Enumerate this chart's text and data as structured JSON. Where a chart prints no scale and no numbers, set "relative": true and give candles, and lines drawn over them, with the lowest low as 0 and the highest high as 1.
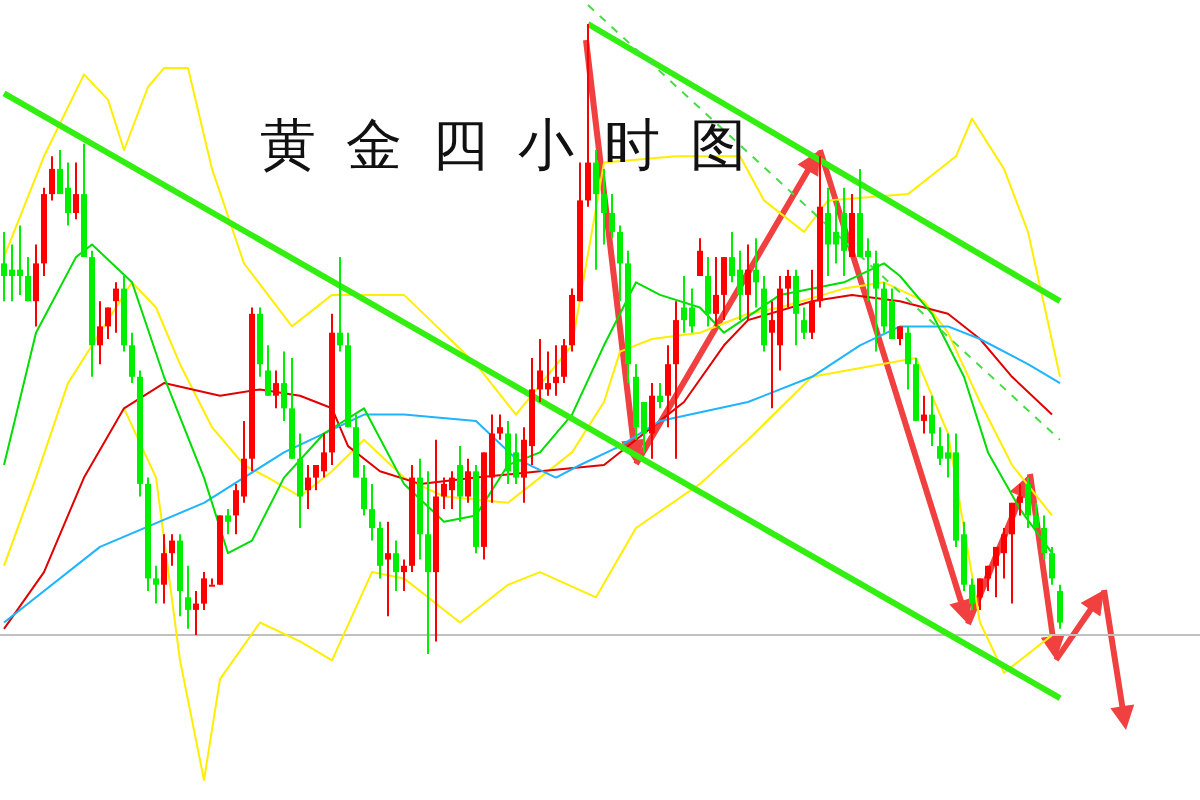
{
  "chart_data": {
    "type": "candlestick",
    "title": "黄金四小时图",
    "relative": true,
    "tick_labels": false,
    "grid": false,
    "legend": false,
    "categories": [
      null,
      null,
      null,
      null,
      null,
      null,
      null,
      null,
      null,
      null,
      null,
      null,
      null,
      null,
      null,
      null,
      null,
      null,
      null,
      null,
      null,
      null,
      null,
      null,
      null,
      null,
      null,
      null,
      null,
      null,
      null,
      null,
      null,
      null,
      null,
      null,
      null,
      null,
      null,
      null,
      null,
      null,
      null,
      null,
      null,
      null,
      null,
      null,
      null,
      null,
      null,
      null,
      null,
      null,
      null,
      null,
      null,
      null,
      null,
      null,
      null,
      null,
      null,
      null,
      null,
      null,
      null,
      null,
      null,
      null,
      null,
      null,
      null,
      null,
      null,
      null,
      null,
      null,
      null,
      null,
      null,
      null,
      null,
      null,
      null,
      null,
      null,
      null,
      null,
      null,
      null,
      null,
      null,
      null,
      null,
      null,
      null,
      null,
      null,
      null,
      null,
      null,
      null,
      null,
      null,
      null,
      null,
      null,
      null,
      null,
      null,
      null,
      null,
      null,
      null,
      null,
      null,
      null,
      null,
      null,
      null,
      null,
      null,
      null,
      null,
      null,
      null,
      null,
      null,
      null,
      null,
      null,
      null
    ],
    "ohlc": [
      [
        0.62,
        0.67,
        0.56,
        0.6
      ],
      [
        0.61,
        0.65,
        0.56,
        0.6
      ],
      [
        0.61,
        0.68,
        0.57,
        0.6
      ],
      [
        0.6,
        0.63,
        0.56,
        0.56
      ],
      [
        0.56,
        0.65,
        0.52,
        0.62
      ],
      [
        0.62,
        0.74,
        0.6,
        0.73
      ],
      [
        0.73,
        0.79,
        0.72,
        0.77
      ],
      [
        0.77,
        0.8,
        0.73,
        0.73
      ],
      [
        0.74,
        0.78,
        0.68,
        0.7
      ],
      [
        0.7,
        0.78,
        0.69,
        0.73
      ],
      [
        0.73,
        0.81,
        0.63,
        0.63
      ],
      [
        0.63,
        0.64,
        0.44,
        0.49
      ],
      [
        0.49,
        0.56,
        0.46,
        0.52
      ],
      [
        0.52,
        0.55,
        0.5,
        0.55
      ],
      [
        0.56,
        0.59,
        0.51,
        0.58
      ],
      [
        0.58,
        0.6,
        0.48,
        0.49
      ],
      [
        0.49,
        0.51,
        0.43,
        0.44
      ],
      [
        0.44,
        0.45,
        0.25,
        0.27
      ],
      [
        0.27,
        0.28,
        0.1,
        0.12
      ],
      [
        0.12,
        0.14,
        0.08,
        0.11
      ],
      [
        0.11,
        0.19,
        0.08,
        0.16
      ],
      [
        0.16,
        0.19,
        0.14,
        0.18
      ],
      [
        0.18,
        0.19,
        0.06,
        0.1
      ],
      [
        0.09,
        0.14,
        0.04,
        0.07
      ],
      [
        0.07,
        0.1,
        0.03,
        0.08
      ],
      [
        0.08,
        0.13,
        0.07,
        0.12
      ],
      [
        0.11,
        0.12,
        0.11,
        0.11
      ],
      [
        0.11,
        0.22,
        0.11,
        0.22
      ],
      [
        0.22,
        0.23,
        0.19,
        0.21
      ],
      [
        0.22,
        0.27,
        0.19,
        0.26
      ],
      [
        0.25,
        0.37,
        0.24,
        0.31
      ],
      [
        0.31,
        0.55,
        0.29,
        0.54
      ],
      [
        0.54,
        0.55,
        0.44,
        0.46
      ],
      [
        0.45,
        0.49,
        0.41,
        0.41
      ],
      [
        0.41,
        0.45,
        0.39,
        0.43
      ],
      [
        0.43,
        0.48,
        0.37,
        0.39
      ],
      [
        0.39,
        0.47,
        0.31,
        0.31
      ],
      [
        0.31,
        0.35,
        0.2,
        0.25
      ],
      [
        0.26,
        0.3,
        0.23,
        0.28
      ],
      [
        0.28,
        0.3,
        0.26,
        0.3
      ],
      [
        0.29,
        0.35,
        0.28,
        0.32
      ],
      [
        0.32,
        0.54,
        0.3,
        0.51
      ],
      [
        0.51,
        0.63,
        0.48,
        0.49
      ],
      [
        0.49,
        0.51,
        0.36,
        0.36
      ],
      [
        0.36,
        0.38,
        0.28,
        0.28
      ],
      [
        0.28,
        0.3,
        0.22,
        0.23
      ],
      [
        0.23,
        0.27,
        0.18,
        0.2
      ],
      [
        0.2,
        0.21,
        0.12,
        0.14
      ],
      [
        0.15,
        0.21,
        0.06,
        0.16
      ],
      [
        0.16,
        0.18,
        0.1,
        0.13
      ],
      [
        0.13,
        0.15,
        0.1,
        0.14
      ],
      [
        0.14,
        0.3,
        0.13,
        0.28
      ],
      [
        0.28,
        0.31,
        0.15,
        0.19
      ],
      [
        0.19,
        0.29,
        0,
        0.13
      ],
      [
        0.13,
        0.34,
        0.02,
        0.25
      ],
      [
        0.25,
        0.28,
        0.23,
        0.27
      ],
      [
        0.26,
        0.29,
        0.23,
        0.28
      ],
      [
        0.3,
        0.33,
        0.21,
        0.25
      ],
      [
        0.25,
        0.31,
        0.24,
        0.29
      ],
      [
        0.29,
        0.3,
        0.16,
        0.17
      ],
      [
        0.17,
        0.32,
        0.15,
        0.32
      ],
      [
        0.28,
        0.38,
        0.24,
        0.35
      ],
      [
        0.35,
        0.38,
        0.34,
        0.36
      ],
      [
        0.35,
        0.37,
        0.27,
        0.29
      ],
      [
        0.32,
        0.35,
        0.27,
        0.28
      ],
      [
        0.28,
        0.36,
        0.24,
        0.34
      ],
      [
        0.33,
        0.47,
        0.3,
        0.42
      ],
      [
        0.42,
        0.5,
        0.4,
        0.45
      ],
      [
        0.42,
        0.48,
        0.41,
        0.43
      ],
      [
        0.43,
        0.49,
        0.41,
        0.44
      ],
      [
        0.44,
        0.5,
        0.43,
        0.49
      ],
      [
        0.49,
        0.58,
        0.48,
        0.57
      ],
      [
        0.56,
        0.78,
        0.56,
        0.72
      ],
      [
        0.72,
        1,
        0.71,
        0.78
      ],
      [
        0.78,
        0.8,
        0.61,
        0.73
      ],
      [
        0.73,
        0.77,
        0.65,
        0.7
      ],
      [
        0.7,
        0.73,
        0.66,
        0.67
      ],
      [
        0.67,
        0.68,
        0.56,
        0.62
      ],
      [
        0.62,
        0.64,
        0.43,
        0.46
      ],
      [
        0.44,
        0.46,
        0.34,
        0.36
      ],
      [
        0.4,
        0.4,
        0.32,
        0.35
      ],
      [
        0.35,
        0.43,
        0.31,
        0.41
      ],
      [
        0.41,
        0.43,
        0.39,
        0.4
      ],
      [
        0.41,
        0.49,
        0.36,
        0.46
      ],
      [
        0.46,
        0.56,
        0.31,
        0.53
      ],
      [
        0.55,
        0.6,
        0.51,
        0.53
      ],
      [
        0.55,
        0.58,
        0.51,
        0.52
      ],
      [
        0.6,
        0.66,
        0.6,
        0.64
      ],
      [
        0.6,
        0.63,
        0.52,
        0.54
      ],
      [
        0.54,
        0.63,
        0.52,
        0.57
      ],
      [
        0.57,
        0.63,
        0.53,
        0.63
      ],
      [
        0.63,
        0.67,
        0.59,
        0.6
      ],
      [
        0.61,
        0.64,
        0.53,
        0.57
      ],
      [
        0.57,
        0.65,
        0.53,
        0.61
      ],
      [
        0.61,
        0.66,
        0.55,
        0.59
      ],
      [
        0.58,
        0.6,
        0.48,
        0.49
      ],
      [
        0.51,
        0.56,
        0.39,
        0.53
      ],
      [
        0.49,
        0.6,
        0.45,
        0.58
      ],
      [
        0.58,
        0.61,
        0.55,
        0.6
      ],
      [
        0.6,
        0.61,
        0.49,
        0.54
      ],
      [
        0.53,
        0.55,
        0.5,
        0.51
      ],
      [
        0.51,
        0.61,
        0.5,
        0.56
      ],
      [
        0.56,
        0.79,
        0.55,
        0.71
      ],
      [
        0.7,
        0.74,
        0.6,
        0.65
      ],
      [
        0.67,
        0.72,
        0.62,
        0.65
      ],
      [
        0.7,
        0.74,
        0.6,
        0.64
      ],
      [
        0.63,
        0.73,
        0.63,
        0.7
      ],
      [
        0.7,
        0.77,
        0.63,
        0.63
      ],
      [
        0.64,
        0.66,
        0.56,
        0.63
      ],
      [
        0.62,
        0.64,
        0.48,
        0.58
      ],
      [
        0.58,
        0.59,
        0.51,
        0.52
      ],
      [
        0.56,
        0.58,
        0.5,
        0.5
      ],
      [
        0.5,
        0.52,
        0.49,
        0.52
      ],
      [
        0.51,
        0.52,
        0.42,
        0.46
      ],
      [
        0.46,
        0.47,
        0.37,
        0.37
      ],
      [
        0.37,
        0.41,
        0.35,
        0.38
      ],
      [
        0.38,
        0.41,
        0.33,
        0.35
      ],
      [
        0.33,
        0.36,
        0.3,
        0.31
      ],
      [
        0.32,
        0.35,
        0.28,
        0.31
      ],
      [
        0.32,
        0.35,
        0.17,
        0.18
      ],
      [
        0.19,
        0.21,
        0.1,
        0.11
      ],
      [
        0.11,
        0.12,
        0.07,
        0.08
      ],
      [
        0.09,
        0.12,
        0.07,
        0.12
      ],
      [
        0.12,
        0.14,
        0.1,
        0.14
      ],
      [
        0.14,
        0.17,
        0.09,
        0.17
      ],
      [
        0.16,
        0.2,
        0.12,
        0.19
      ],
      [
        0.19,
        0.24,
        0.08,
        0.24
      ],
      [
        0.24,
        0.27,
        0.22,
        0.25
      ],
      [
        0.27,
        0.28,
        0.2,
        0.22
      ],
      [
        0.22,
        0.24,
        0.2,
        0.2
      ],
      [
        0.2,
        0.22,
        0.15,
        0.16
      ],
      [
        0.16,
        0.17,
        0.11,
        0.12
      ],
      [
        0.1,
        0.11,
        0.04,
        0.05
      ]
    ],
    "ref_lines": [
      {
        "axis": "y",
        "value": 0.03,
        "color": "#c0c0c0"
      }
    ],
    "series": [
      {
        "type": "line",
        "color": "#ffee00",
        "values": [
          0.63,
          null,
          null,
          null,
          null,
          0.79,
          null,
          null,
          null,
          null,
          0.92,
          null,
          null,
          0.88,
          null,
          0.8,
          null,
          null,
          0.9,
          null,
          0.93,
          null,
          null,
          0.93,
          null,
          null,
          0.77,
          null,
          null,
          null,
          0.62,
          null,
          null,
          null,
          null,
          null,
          0.52,
          null,
          null,
          null,
          null,
          0.57,
          null,
          null,
          null,
          null,
          null,
          null,
          null,
          null,
          0.57,
          null,
          null,
          null,
          null,
          null,
          null,
          null,
          null,
          0.46,
          null,
          null,
          null,
          null,
          0.38,
          null,
          null,
          null,
          null,
          null,
          null,
          0.49,
          null,
          null,
          null,
          0.78,
          null,
          null,
          null,
          null,
          null,
          null,
          null,
          null,
          0.79,
          null,
          null,
          null,
          null,
          null,
          null,
          null,
          0.79,
          null,
          null,
          0.72,
          null,
          null,
          null,
          null,
          0.67,
          null,
          null,
          0.72,
          null,
          null,
          null,
          null,
          null,
          null,
          null,
          null,
          null,
          0.73,
          null,
          null,
          null,
          null,
          null,
          0.79,
          null,
          0.85,
          null,
          null,
          null,
          0.77,
          null,
          null,
          0.67,
          null,
          null,
          null,
          0.44
        ]
      },
      {
        "type": "line",
        "color": "#ffee00",
        "values": [
          0.14,
          null,
          null,
          null,
          0.28,
          null,
          null,
          null,
          0.43,
          null,
          null,
          null,
          0.51,
          null,
          null,
          null,
          0.59,
          null,
          null,
          0.55,
          null,
          null,
          0.46,
          null,
          null,
          null,
          0.36,
          null,
          null,
          null,
          0.3,
          null,
          null,
          0.28,
          null,
          null,
          null,
          0.25,
          null,
          null,
          null,
          0.29,
          null,
          null,
          null,
          0.34,
          null,
          null,
          null,
          null,
          0.28,
          null,
          null,
          null,
          null,
          0.25,
          null,
          null,
          null,
          null,
          null,
          null,
          null,
          0.24,
          null,
          null,
          null,
          0.28,
          null,
          null,
          null,
          0.32,
          null,
          null,
          null,
          0.4,
          null,
          0.48,
          null,
          null,
          null,
          0.5,
          null,
          null,
          null,
          null,
          null,
          0.51,
          null,
          null,
          null,
          null,
          null,
          0.54,
          null,
          null,
          null,
          0.55,
          null,
          null,
          null,
          null,
          null,
          null,
          null,
          0.58,
          null,
          null,
          null,
          null,
          0.59,
          null,
          null,
          null,
          null,
          0.56,
          null,
          null,
          0.51,
          null,
          null,
          null,
          0.4,
          null,
          null,
          null,
          0.3,
          null,
          null,
          null,
          null,
          0.22,
          null
        ]
      },
      {
        "type": "line",
        "color": "#ffee00",
        "values": [
          null,
          null,
          null,
          null,
          null,
          null,
          null,
          null,
          null,
          null,
          null,
          null,
          null,
          null,
          null,
          0.39,
          null,
          null,
          null,
          0.28,
          null,
          null,
          -0.01,
          null,
          null,
          -0.2,
          null,
          -0.04,
          null,
          null,
          null,
          null,
          0.05,
          null,
          null,
          null,
          null,
          0.02,
          null,
          null,
          null,
          -0.01,
          null,
          null,
          null,
          null,
          0.13,
          null,
          null,
          null,
          0.12,
          null,
          null,
          null,
          null,
          null,
          null,
          0.05,
          null,
          null,
          null,
          null,
          null,
          0.11,
          null,
          null,
          null,
          0.13,
          null,
          null,
          null,
          null,
          null,
          null,
          0.09,
          null,
          null,
          null,
          null,
          0.2,
          null,
          null,
          null,
          null,
          null,
          null,
          null,
          0.27,
          null,
          null,
          null,
          null,
          null,
          0.34,
          null,
          null,
          null,
          null,
          null,
          null,
          null,
          0.44,
          null,
          null,
          null,
          null,
          null,
          null,
          null,
          null,
          null,
          null,
          null,
          null,
          0.47,
          null,
          null,
          null,
          0.35,
          null,
          null,
          null,
          0.05,
          null,
          null,
          -0.03,
          null,
          null,
          null,
          null,
          null,
          0.03,
          null
        ]
      },
      {
        "type": "line",
        "color": "#e00000",
        "values": [
          0.04,
          null,
          null,
          null,
          null,
          0.13,
          null,
          null,
          null,
          null,
          0.28,
          null,
          null,
          null,
          null,
          0.39,
          null,
          null,
          null,
          null,
          0.43,
          null,
          null,
          null,
          null,
          null,
          null,
          0.41,
          null,
          null,
          null,
          null,
          0.42,
          null,
          null,
          null,
          null,
          0.41,
          null,
          null,
          null,
          0.39,
          null,
          0.33,
          null,
          null,
          null,
          0.29,
          null,
          null,
          null,
          null,
          0.27,
          null,
          null,
          null,
          null,
          null,
          null,
          0.28,
          null,
          null,
          null,
          null,
          null,
          null,
          null,
          0.29,
          null,
          null,
          null,
          null,
          null,
          null,
          null,
          0.3,
          null,
          null,
          null,
          0.34,
          null,
          null,
          0.37,
          null,
          null,
          0.4,
          null,
          null,
          null,
          null,
          0.49,
          null,
          null,
          0.53,
          null,
          null,
          null,
          null,
          null,
          null,
          null,
          0.56,
          null,
          null,
          null,
          null,
          0.57,
          null,
          null,
          null,
          null,
          null,
          0.56,
          null,
          null,
          null,
          null,
          null,
          0.54,
          null,
          null,
          null,
          0.5,
          null,
          null,
          null,
          0.44,
          null,
          null,
          null,
          null,
          0.38,
          null
        ]
      },
      {
        "type": "line",
        "color": "#1eb4ff",
        "values": [
          0.05,
          null,
          null,
          null,
          null,
          null,
          null,
          null,
          null,
          null,
          null,
          null,
          0.17,
          null,
          null,
          null,
          null,
          null,
          null,
          null,
          null,
          null,
          null,
          null,
          null,
          0.24,
          null,
          null,
          null,
          null,
          null,
          null,
          null,
          null,
          null,
          0.32,
          null,
          null,
          null,
          null,
          null,
          null,
          null,
          null,
          null,
          0.38,
          null,
          null,
          null,
          null,
          0.38,
          null,
          null,
          null,
          null,
          null,
          null,
          null,
          null,
          0.37,
          null,
          null,
          null,
          null,
          0.31,
          null,
          null,
          null,
          null,
          0.28,
          null,
          null,
          0.3,
          null,
          null,
          null,
          null,
          0.33,
          null,
          null,
          null,
          null,
          0.37,
          null,
          null,
          null,
          null,
          null,
          null,
          null,
          null,
          null,
          null,
          0.4,
          null,
          null,
          null,
          null,
          null,
          null,
          null,
          0.44,
          null,
          null,
          null,
          null,
          null,
          0.49,
          null,
          null,
          null,
          null,
          0.52,
          null,
          null,
          null,
          null,
          null,
          0.52,
          null,
          null,
          null,
          0.5,
          null,
          null,
          null,
          null,
          null,
          0.46,
          null,
          null,
          null,
          0.43
        ]
      },
      {
        "type": "line",
        "color": "#00dd00",
        "values": [
          0.3,
          null,
          null,
          null,
          0.51,
          null,
          null,
          null,
          null,
          0.63,
          null,
          0.65,
          null,
          null,
          null,
          null,
          0.59,
          null,
          null,
          null,
          0.44,
          null,
          null,
          null,
          null,
          0.28,
          null,
          null,
          0.16,
          null,
          null,
          0.18,
          null,
          null,
          null,
          0.28,
          null,
          null,
          null,
          null,
          0.35,
          null,
          null,
          null,
          null,
          0.39,
          null,
          null,
          null,
          null,
          0.27,
          null,
          null,
          null,
          null,
          0.21,
          null,
          null,
          null,
          0.22,
          null,
          null,
          null,
          0.3,
          null,
          null,
          null,
          0.32,
          null,
          null,
          null,
          0.38,
          null,
          null,
          null,
          0.49,
          null,
          null,
          null,
          0.59,
          null,
          null,
          0.57,
          null,
          null,
          null,
          null,
          0.55,
          null,
          null,
          0.51,
          null,
          null,
          null,
          null,
          null,
          null,
          0.57,
          null,
          null,
          null,
          null,
          null,
          null,
          null,
          0.59,
          null,
          null,
          null,
          null,
          0.62,
          null,
          0.6,
          null,
          null,
          null,
          0.54,
          null,
          null,
          null,
          0.44,
          null,
          null,
          0.32,
          null,
          null,
          null,
          0.23,
          null,
          null,
          null,
          0.16,
          null
        ]
      },
      {
        "type": "line",
        "color": "#33ee11",
        "values": [
          0.89,
          null,
          null,
          null,
          null,
          null,
          null,
          null,
          null,
          null,
          null,
          null,
          null,
          null,
          null,
          null,
          null,
          null,
          null,
          null,
          null,
          null,
          null,
          null,
          null,
          null,
          null,
          null,
          null,
          null,
          null,
          null,
          null,
          null,
          null,
          null,
          null,
          null,
          null,
          null,
          null,
          null,
          null,
          null,
          null,
          null,
          null,
          null,
          null,
          null,
          null,
          null,
          null,
          null,
          null,
          null,
          null,
          null,
          null,
          null,
          null,
          null,
          null,
          null,
          null,
          null,
          null,
          null,
          null,
          null,
          null,
          null,
          null,
          null,
          null,
          null,
          null,
          null,
          null,
          null,
          null,
          null,
          null,
          null,
          null,
          null,
          null,
          null,
          null,
          null,
          null,
          null,
          null,
          null,
          null,
          null,
          null,
          null,
          null,
          null,
          null,
          null,
          null,
          null,
          null,
          null,
          null,
          null,
          null,
          null,
          null,
          null,
          null,
          null,
          null,
          null,
          null,
          null,
          null,
          null,
          null,
          null,
          null,
          null,
          null,
          null,
          null,
          null,
          null,
          null,
          null,
          null,
          -0.07
        ]
      },
      {
        "type": "line",
        "color": "#33ee11",
        "values": [
          null,
          null,
          null,
          null,
          null,
          null,
          null,
          null,
          null,
          null,
          null,
          null,
          null,
          null,
          null,
          null,
          null,
          null,
          null,
          null,
          null,
          null,
          null,
          null,
          null,
          null,
          null,
          null,
          null,
          null,
          null,
          null,
          null,
          null,
          null,
          null,
          null,
          null,
          null,
          null,
          null,
          null,
          null,
          null,
          null,
          null,
          null,
          null,
          null,
          null,
          null,
          null,
          null,
          null,
          null,
          null,
          null,
          null,
          null,
          null,
          null,
          null,
          null,
          null,
          null,
          null,
          null,
          null,
          null,
          null,
          null,
          null,
          null,
          1.0,
          null,
          null,
          null,
          null,
          null,
          null,
          null,
          null,
          null,
          null,
          null,
          null,
          null,
          null,
          null,
          null,
          null,
          null,
          null,
          null,
          null,
          null,
          null,
          null,
          null,
          null,
          null,
          null,
          null,
          null,
          null,
          null,
          null,
          null,
          null,
          null,
          null,
          null,
          null,
          null,
          null,
          null,
          null,
          null,
          null,
          null,
          null,
          null,
          null,
          null,
          null,
          null,
          null,
          null,
          null,
          null,
          null,
          null,
          0.56
        ]
      },
      {
        "type": "line",
        "color": "#44dd44",
        "line_style": "dashed",
        "values": [
          null,
          null,
          null,
          null,
          null,
          null,
          null,
          null,
          null,
          null,
          null,
          null,
          null,
          null,
          null,
          null,
          null,
          null,
          null,
          null,
          null,
          null,
          null,
          null,
          null,
          null,
          null,
          null,
          null,
          null,
          null,
          null,
          null,
          null,
          null,
          null,
          null,
          null,
          null,
          null,
          null,
          null,
          null,
          null,
          null,
          null,
          null,
          null,
          null,
          null,
          null,
          null,
          null,
          null,
          null,
          null,
          null,
          null,
          null,
          null,
          null,
          null,
          null,
          null,
          null,
          null,
          null,
          null,
          null,
          null,
          null,
          null,
          null,
          1.03,
          null,
          null,
          null,
          null,
          null,
          null,
          null,
          null,
          null,
          null,
          null,
          null,
          null,
          null,
          null,
          null,
          null,
          null,
          null,
          null,
          null,
          null,
          null,
          null,
          null,
          null,
          null,
          null,
          null,
          null,
          null,
          null,
          null,
          null,
          null,
          null,
          null,
          null,
          null,
          null,
          null,
          null,
          null,
          null,
          null,
          null,
          null,
          null,
          null,
          null,
          null,
          null,
          null,
          null,
          null,
          null,
          null,
          null,
          0.34
        ]
      }
    ]
  }
}
